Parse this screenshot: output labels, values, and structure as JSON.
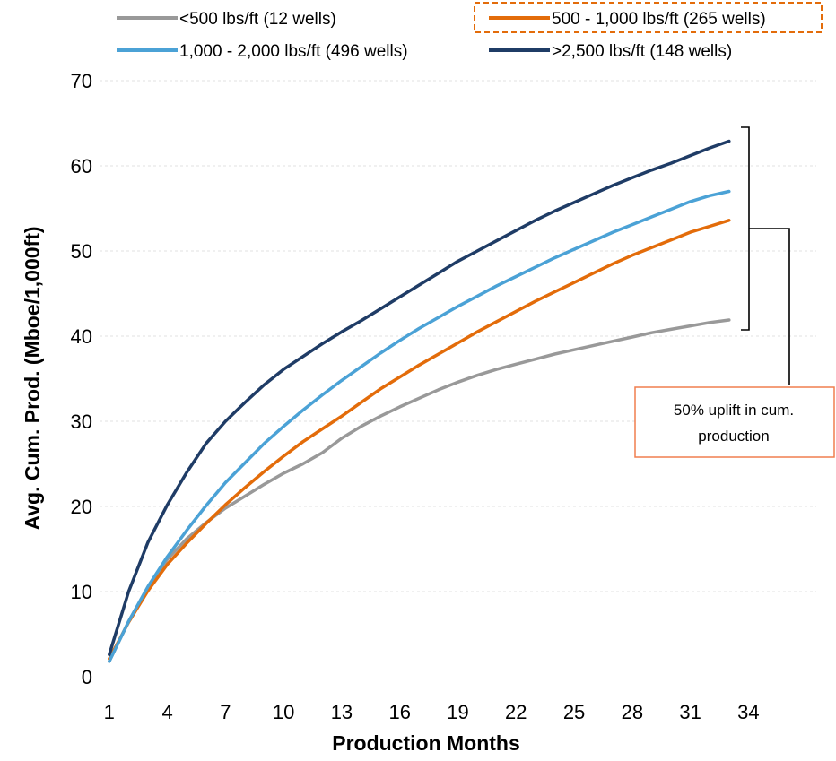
{
  "chart_data": {
    "type": "line",
    "title": "",
    "xlabel": "Production Months",
    "ylabel": "Avg. Cum. Prod. (Mboe/1,000ft)",
    "x_ticks": [
      "1",
      "4",
      "7",
      "10",
      "13",
      "16",
      "19",
      "22",
      "25",
      "28",
      "31",
      "34"
    ],
    "y_ticks": [
      "0",
      "10",
      "20",
      "30",
      "40",
      "50",
      "60",
      "70"
    ],
    "xlim": [
      1,
      37
    ],
    "ylim": [
      0,
      70
    ],
    "grid": true,
    "legend_position": "top",
    "x": [
      1,
      2,
      3,
      4,
      5,
      6,
      7,
      8,
      9,
      10,
      11,
      12,
      13,
      14,
      15,
      16,
      17,
      18,
      19,
      20,
      21,
      22,
      23,
      24,
      25,
      26,
      27,
      28,
      29,
      30,
      31,
      32,
      33
    ],
    "series": [
      {
        "name": "<500 lbs/ft (12 wells)",
        "color": "#999999",
        "values": [
          1.8,
          6.5,
          10.5,
          13.8,
          16.2,
          18.1,
          19.8,
          21.2,
          22.6,
          23.9,
          25.0,
          26.3,
          28.0,
          29.4,
          30.6,
          31.7,
          32.7,
          33.7,
          34.6,
          35.4,
          36.1,
          36.7,
          37.3,
          37.9,
          38.4,
          38.9,
          39.4,
          39.9,
          40.4,
          40.8,
          41.2,
          41.6,
          41.9
        ]
      },
      {
        "name": "500 - 1,000 lbs/ft (265 wells)",
        "color": "#E36C0A",
        "values": [
          2.1,
          6.4,
          10.1,
          13.2,
          15.7,
          18.0,
          20.2,
          22.2,
          24.1,
          25.9,
          27.6,
          29.1,
          30.6,
          32.2,
          33.8,
          35.2,
          36.6,
          37.9,
          39.2,
          40.5,
          41.7,
          42.9,
          44.1,
          45.2,
          46.3,
          47.4,
          48.5,
          49.5,
          50.4,
          51.3,
          52.2,
          52.9,
          53.6
        ]
      },
      {
        "name": "1,000 - 2,000 lbs/ft (496 wells)",
        "color": "#4BA2D6",
        "values": [
          1.8,
          6.5,
          10.6,
          14.1,
          17.2,
          20.1,
          22.8,
          25.1,
          27.4,
          29.4,
          31.3,
          33.1,
          34.8,
          36.4,
          38.0,
          39.5,
          40.9,
          42.2,
          43.5,
          44.7,
          45.9,
          47.0,
          48.1,
          49.2,
          50.2,
          51.2,
          52.2,
          53.1,
          54.0,
          54.9,
          55.8,
          56.5,
          57.0
        ]
      },
      {
        "name": ">2,500 lbs/ft (148 wells)",
        "color": "#1F3C66",
        "values": [
          2.6,
          10.0,
          15.8,
          20.2,
          24.0,
          27.4,
          30.0,
          32.2,
          34.3,
          36.1,
          37.6,
          39.1,
          40.5,
          41.8,
          43.2,
          44.6,
          46.0,
          47.4,
          48.8,
          50.0,
          51.2,
          52.4,
          53.6,
          54.7,
          55.7,
          56.7,
          57.7,
          58.6,
          59.5,
          60.3,
          61.2,
          62.1,
          62.9
        ]
      }
    ],
    "annotation": {
      "text_lines": [
        "50% uplift in cum.",
        "production"
      ],
      "border_color": "#F07E4F"
    },
    "highlighted_legend_entry": "500 - 1,000 lbs/ft (265 wells)",
    "highlight_color": "#E36C0A"
  }
}
